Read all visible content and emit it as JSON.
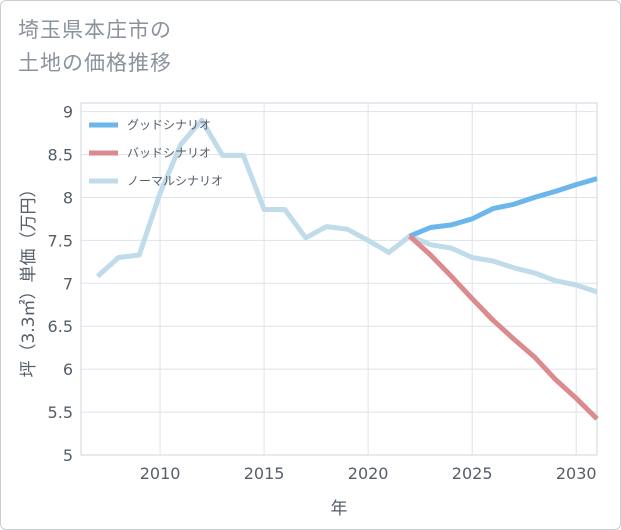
{
  "title_line1": "埼玉県本庄市の",
  "title_line2": "土地の価格推移",
  "chart_data": {
    "type": "line",
    "xlabel": "年",
    "ylabel": "坪（3.3㎡）単価（万円）",
    "xlim": [
      2006.2,
      2031
    ],
    "ylim": [
      5,
      9.1
    ],
    "xticks": [
      2010,
      2015,
      2020,
      2025,
      2030
    ],
    "yticks": [
      5,
      5.5,
      6,
      6.5,
      7,
      7.5,
      8,
      8.5,
      9
    ],
    "legend_position": "top-left",
    "series": [
      {
        "name": "グッドシナリオ",
        "color": "#6bb6ec",
        "width": 5,
        "x": [
          2022,
          2023,
          2024,
          2025,
          2026,
          2027,
          2028,
          2029,
          2030,
          2031
        ],
        "y": [
          7.55,
          7.65,
          7.68,
          7.75,
          7.87,
          7.92,
          8.0,
          8.07,
          8.15,
          8.22
        ]
      },
      {
        "name": "バッドシナリオ",
        "color": "#db8a8e",
        "width": 5,
        "x": [
          2022,
          2023,
          2024,
          2025,
          2026,
          2027,
          2028,
          2029,
          2030,
          2031
        ],
        "y": [
          7.55,
          7.33,
          7.08,
          6.82,
          6.57,
          6.35,
          6.14,
          5.88,
          5.66,
          5.42
        ]
      },
      {
        "name": "ノーマルシナリオ",
        "color": "#c0dcea",
        "width": 5,
        "x": [
          2007,
          2008,
          2009,
          2010,
          2011,
          2012,
          2013,
          2014,
          2015,
          2016,
          2017,
          2018,
          2019,
          2020,
          2021,
          2022,
          2023,
          2024,
          2025,
          2026,
          2027,
          2028,
          2029,
          2030,
          2031
        ],
        "y": [
          7.08,
          7.3,
          7.33,
          8.05,
          8.62,
          8.9,
          8.49,
          8.49,
          7.86,
          7.86,
          7.53,
          7.66,
          7.63,
          7.5,
          7.36,
          7.55,
          7.45,
          7.41,
          7.3,
          7.26,
          7.18,
          7.12,
          7.03,
          6.98,
          6.9
        ]
      }
    ]
  }
}
